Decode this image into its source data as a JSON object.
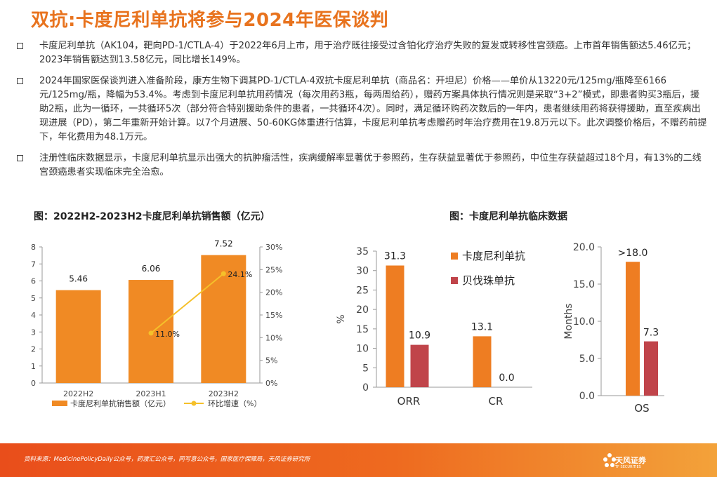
{
  "title": "双抗:卡度尼利单抗将参与2024年医保谈判",
  "bullets": [
    "卡度尼利单抗（AK104，靶向PD-1/CTLA-4）于2022年6月上市，用于治疗既往接受过含铂化疗治疗失败的复发或转移性宫颈癌。上市首年销售额达5.46亿元；2023年销售额达到13.58亿元，同比增长149%。",
    "2024年国家医保谈判进入准备阶段，康方生物下调其PD-1/CTLA-4双抗卡度尼利单抗（商品名：开坦尼）价格——单价从13220元/125mg/瓶降至6166元/125mg/瓶，降幅为53.4%。考虑到卡度尼利单抗用药情况（每次用药3瓶，每两周给药），赠药方案具体执行情况则是采取“3+2”模式，即患者购买3瓶后，援助2瓶，此为一循环，一共循环5次（部分符合特别援助条件的患者，一共循环4次）。同时，满足循环购药次数后的一年内，患者继续用药将获得援助，直至疾病出现进展（PD），第二年重新开始计算。以7个月进展、50-60KG体重进行估算，卡度尼利单抗考虑赠药时年治疗费用在19.8万元以下。此次调整价格后，不赠药前提下，年化费用为48.1万元。",
    "注册性临床数据显示，卡度尼利单抗显示出强大的抗肿瘤活性，疾病缓解率显著优于参照药，生存获益显著优于参照药，中位生存获益超过18个月，有13%的二线宫颈癌患者实现临床完全治愈。"
  ],
  "chart1_title": "图：2022H2-2023H2卡度尼利单抗销售额（亿元）",
  "chart2_title": "图：卡度尼利单抗临床数据",
  "footer": {
    "source": "资料来源：MedicinePolicyDaily公众号，药渡汇公众号，同写意公众号，国家医疗保障局，天风证券研究所",
    "logo_cn": "天风证券",
    "logo_en": "TF SECURITIES"
  },
  "chart_data": [
    {
      "type": "bar",
      "categories": [
        "2022H2",
        "2023H1",
        "2023H2"
      ],
      "series": [
        {
          "name": "卡度尼利单抗销售额（亿元）",
          "values": [
            5.46,
            6.06,
            7.52
          ],
          "labels": [
            "5.46",
            "6.06",
            "7.52"
          ],
          "color": "#F08A24",
          "axis": "left"
        },
        {
          "name": "环比增速（%）",
          "type": "line",
          "values": [
            null,
            11.0,
            24.1
          ],
          "labels": [
            "",
            "11.0%",
            "24.1%"
          ],
          "color": "#F5C02A",
          "axis": "right"
        }
      ],
      "ylim": [
        0,
        8
      ],
      "yticks": [
        "0",
        "1",
        "2",
        "3",
        "4",
        "5",
        "6",
        "7",
        "8"
      ],
      "y2lim": [
        0,
        30
      ],
      "y2ticks": [
        "0%",
        "5%",
        "10%",
        "15%",
        "20%",
        "25%",
        "30%"
      ],
      "legend": "bottom"
    },
    {
      "type": "bar",
      "categories": [
        "ORR",
        "CR"
      ],
      "series": [
        {
          "name": "卡度尼利单抗",
          "values": [
            31.3,
            13.1
          ],
          "labels": [
            "31.3",
            "13.1"
          ],
          "color": "#EE7D22"
        },
        {
          "name": "贝伐珠单抗",
          "values": [
            10.9,
            0.0
          ],
          "labels": [
            "10.9",
            "0.0"
          ],
          "color": "#C0444A"
        }
      ],
      "ylabel": "%",
      "ylim": [
        0,
        35
      ],
      "yticks": [
        "0",
        "5",
        "10",
        "15",
        "20",
        "25",
        "30",
        "35"
      ],
      "legend": "right"
    },
    {
      "type": "bar",
      "categories": [
        "OS"
      ],
      "series": [
        {
          "name": "卡度尼利单抗",
          "values": [
            18.0
          ],
          "labels": [
            ">18.0"
          ],
          "color": "#EE7D22"
        },
        {
          "name": "贝伐珠单抗",
          "values": [
            7.3
          ],
          "labels": [
            "7.3"
          ],
          "color": "#C0444A"
        }
      ],
      "ylabel": "Months",
      "ylim": [
        0,
        20
      ],
      "yticks": [
        "0.0",
        "5.0",
        "10.0",
        "15.0",
        "20.0"
      ]
    }
  ]
}
